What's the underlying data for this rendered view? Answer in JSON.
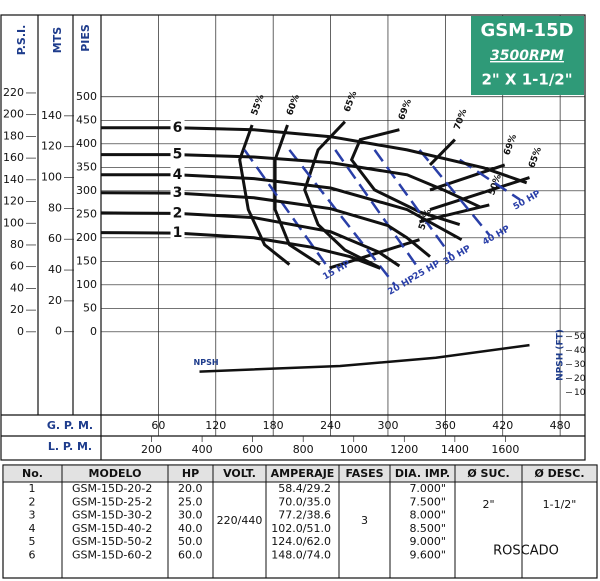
{
  "chart_data": {
    "type": "line",
    "title": "GSM-15D",
    "subtitle": "3500RPM",
    "size_label": "2\" X 1-1/2\"",
    "xlabel": "G. P. M.",
    "xlim": [
      0,
      506
    ],
    "xticks": [
      60,
      120,
      180,
      240,
      300,
      360,
      420,
      480
    ],
    "x2label": "L. P. M.",
    "x2lim": [
      0,
      1915
    ],
    "x2ticks": [
      200,
      400,
      600,
      800,
      1000,
      1200,
      1400,
      1600
    ],
    "ylabel": "PIES",
    "ylim": [
      -177,
      674
    ],
    "yticks": [
      0,
      50,
      100,
      150,
      200,
      250,
      300,
      350,
      400,
      450,
      500
    ],
    "psi_label": "P.S.I.",
    "psi_lim": [
      -76.6,
      291.8
    ],
    "psi_ticks": [
      0,
      20,
      40,
      60,
      80,
      100,
      120,
      140,
      160,
      180,
      200,
      220
    ],
    "mts_label": "MTS",
    "mts_lim": [
      -54,
      205.4
    ],
    "mts_ticks": [
      0,
      20,
      40,
      60,
      80,
      100,
      120,
      140
    ],
    "npsh_label": "NPSH (FT)",
    "npsh_lim": [
      -6,
      280
    ],
    "npsh_ticks": [
      10,
      20,
      30,
      40,
      50
    ],
    "grid": true,
    "series": [
      {
        "name": "6",
        "color": "#111111",
        "x": [
          0,
          80,
          160,
          240,
          320,
          400,
          445
        ],
        "values": [
          434,
          434,
          430,
          415,
          387,
          349,
          317
        ]
      },
      {
        "name": "5",
        "color": "#111111",
        "x": [
          0,
          80,
          160,
          240,
          320,
          360,
          396
        ],
        "values": [
          377,
          377,
          372,
          360,
          334,
          300,
          266
        ]
      },
      {
        "name": "4",
        "color": "#111111",
        "x": [
          0,
          80,
          160,
          240,
          320,
          377
        ],
        "values": [
          334,
          334,
          326,
          306,
          260,
          196
        ]
      },
      {
        "name": "3",
        "color": "#111111",
        "x": [
          0,
          80,
          160,
          240,
          300,
          320,
          344
        ],
        "values": [
          296,
          295,
          285,
          262,
          226,
          200,
          160
        ]
      },
      {
        "name": "2",
        "color": "#111111",
        "x": [
          0,
          80,
          160,
          240,
          290,
          312
        ],
        "values": [
          253,
          252,
          243,
          213,
          170,
          140
        ]
      },
      {
        "name": "1",
        "color": "#111111",
        "x": [
          0,
          80,
          160,
          220,
          260,
          292
        ],
        "values": [
          211,
          210,
          200,
          180,
          160,
          135
        ]
      }
    ],
    "efficiency": [
      {
        "label": "55%",
        "x": [
          158,
          145,
          154,
          171,
          197
        ],
        "values": [
          440,
          366,
          260,
          185,
          143
        ]
      },
      {
        "label": "60%",
        "x": [
          195,
          182,
          182,
          197,
          229
        ],
        "values": [
          440,
          366,
          260,
          185,
          143
        ]
      },
      {
        "label": "65%",
        "x": [
          255,
          227,
          213,
          227,
          255,
          292
        ],
        "values": [
          447,
          387,
          302,
          228,
          174,
          136
        ]
      },
      {
        "label": "69%",
        "x": [
          312,
          271,
          262,
          286,
          333,
          375
        ],
        "values": [
          430,
          409,
          366,
          302,
          255,
          228
        ]
      },
      {
        "label": "70%",
        "x": [
          370,
          344
        ],
        "values": [
          409,
          355
        ]
      },
      {
        "label": "69%",
        "x": [
          422,
          344
        ],
        "values": [
          355,
          302
        ]
      },
      {
        "label": "65%",
        "x": [
          448,
          344
        ],
        "values": [
          328,
          260
        ]
      },
      {
        "label": "50%",
        "x": [
          406,
          333
        ],
        "values": [
          270,
          234
        ]
      },
      {
        "label": "55%",
        "x": [
          333,
          239
        ],
        "values": [
          196,
          136
        ]
      }
    ],
    "hp_lines": [
      {
        "label": "15 HP",
        "color": "#2a3fa8",
        "x": [
          150,
          239
        ],
        "values": [
          387,
          132
        ]
      },
      {
        "label": "20 HP",
        "color": "#2a3fa8",
        "x": [
          197,
          307
        ],
        "values": [
          387,
          100
        ]
      },
      {
        "label": "25 HP",
        "color": "#2a3fa8",
        "x": [
          245,
          333
        ],
        "values": [
          387,
          132
        ]
      },
      {
        "label": "30 HP",
        "color": "#2a3fa8",
        "x": [
          286,
          365
        ],
        "values": [
          387,
          164
        ]
      },
      {
        "label": "40 HP",
        "color": "#2a3fa8",
        "x": [
          333,
          406
        ],
        "values": [
          387,
          206
        ]
      },
      {
        "label": "50 HP",
        "color": "#2a3fa8",
        "x": [
          375,
          438
        ],
        "values": [
          366,
          281
        ]
      }
    ],
    "npsh": {
      "name": "NPSH",
      "color": "#111111",
      "x": [
        103,
        250,
        350,
        448
      ],
      "values": [
        25,
        29,
        35,
        44
      ]
    }
  },
  "table": {
    "header": [
      "No.",
      "MODELO",
      "HP",
      "VOLT.",
      "AMPERAJE",
      "FASES",
      "DIA. IMP.",
      "Ø SUC.",
      "Ø DESC."
    ],
    "rows": [
      [
        "1",
        "GSM-15D-20-2",
        "20.0",
        "58.4/29.2",
        "7.000\""
      ],
      [
        "2",
        "GSM-15D-25-2",
        "25.0",
        "70.0/35.0",
        "7.500\""
      ],
      [
        "3",
        "GSM-15D-30-2",
        "30.0",
        "77.2/38.6",
        "8.000\""
      ],
      [
        "4",
        "GSM-15D-40-2",
        "40.0",
        "102.0/51.0",
        "8.500\""
      ],
      [
        "5",
        "GSM-15D-50-2",
        "50.0",
        "124.0/62.0",
        "9.000\""
      ],
      [
        "6",
        "GSM-15D-60-2",
        "60.0",
        "148.0/74.0",
        "9.600\""
      ]
    ],
    "volt": "220/440",
    "fases": "3",
    "suc": "2\"",
    "desc": "1-1/2\"",
    "note": "ROSCADO"
  }
}
